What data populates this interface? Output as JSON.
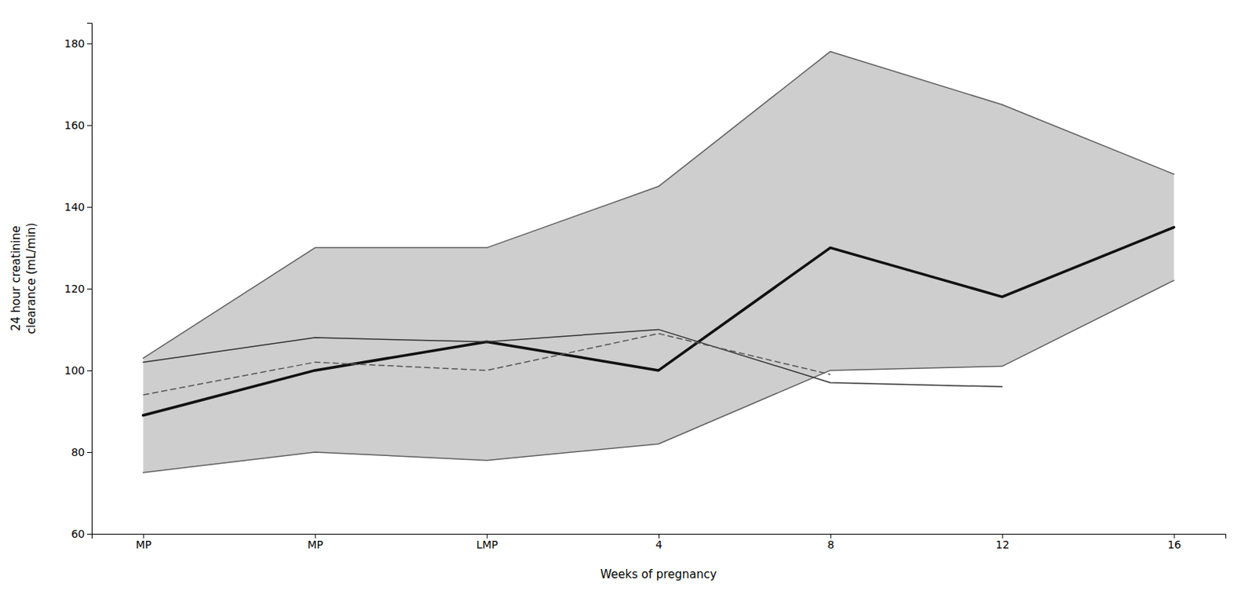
{
  "chart_data": {
    "type": "line",
    "categories": [
      "MP",
      "MP",
      "LMP",
      "4",
      "8",
      "12",
      "16"
    ],
    "series": [
      {
        "type": "area",
        "color": "#cecece",
        "values": [
          103,
          130,
          130,
          145,
          178,
          165,
          148
        ],
        "lower": [
          75,
          80,
          78,
          82,
          100,
          101,
          122
        ]
      },
      {
        "type": "line",
        "color": "#606060",
        "line_style": "solid",
        "values": [
          103,
          130,
          130,
          145,
          178,
          165,
          148
        ]
      },
      {
        "type": "line",
        "color": "#606060",
        "line_style": "solid",
        "values": [
          75,
          80,
          78,
          82,
          100,
          101,
          122
        ]
      },
      {
        "type": "line",
        "color": "#111111",
        "line_style": "solid",
        "values": [
          89,
          100,
          107,
          100,
          130,
          118,
          135
        ]
      },
      {
        "type": "line",
        "color": "#333333",
        "line_style": "solid",
        "values": [
          102,
          108,
          107,
          110,
          97,
          96,
          null
        ]
      },
      {
        "type": "line",
        "color": "#555555",
        "line_style": "dashed",
        "values": [
          94,
          102,
          100,
          109,
          99,
          null,
          null
        ]
      }
    ],
    "x_label": "Weeks of pregnancy",
    "y_label": "24 hour creatinine\nclearance (mL/min)",
    "ylim": [
      60,
      185
    ],
    "yticks": [
      60,
      80,
      100,
      120,
      140,
      160,
      180
    ],
    "grid": false
  }
}
